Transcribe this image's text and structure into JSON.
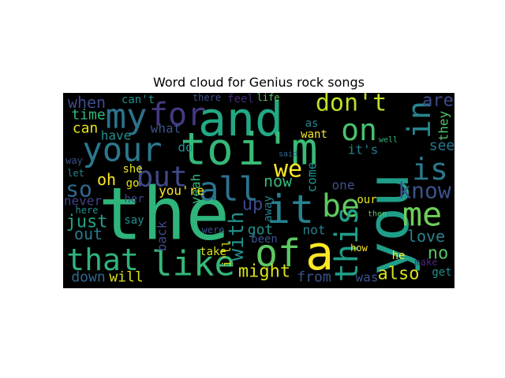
{
  "chart_data": {
    "type": "wordcloud",
    "title": "Word cloud for Genius rock songs",
    "words": [
      "the",
      "you",
      "and",
      "to",
      "i'm",
      "my",
      "for",
      "your",
      "on",
      "in",
      "don't",
      "it",
      "be",
      "me",
      "is",
      "know",
      "all",
      "but",
      "we",
      "a",
      "of",
      "like",
      "that",
      "this",
      "with",
      "so",
      "just",
      "out",
      "oh",
      "can",
      "time",
      "when",
      "have",
      "never",
      "down",
      "will",
      "might",
      "from",
      "also",
      "no",
      "love",
      "see",
      "are",
      "they",
      "was",
      "up",
      "now",
      "got",
      "yeah",
      "you're",
      "what",
      "do",
      "she",
      "her",
      "say",
      "take",
      "back",
      "go",
      "away",
      "been",
      "not",
      "he",
      "get",
      "one",
      "our",
      "feel",
      "life",
      "can't",
      "there",
      "as",
      "want",
      "let",
      "way",
      "here",
      "were",
      "make",
      "how",
      "then",
      "it's",
      "come",
      "said",
      "well",
      "i'll"
    ]
  }
}
